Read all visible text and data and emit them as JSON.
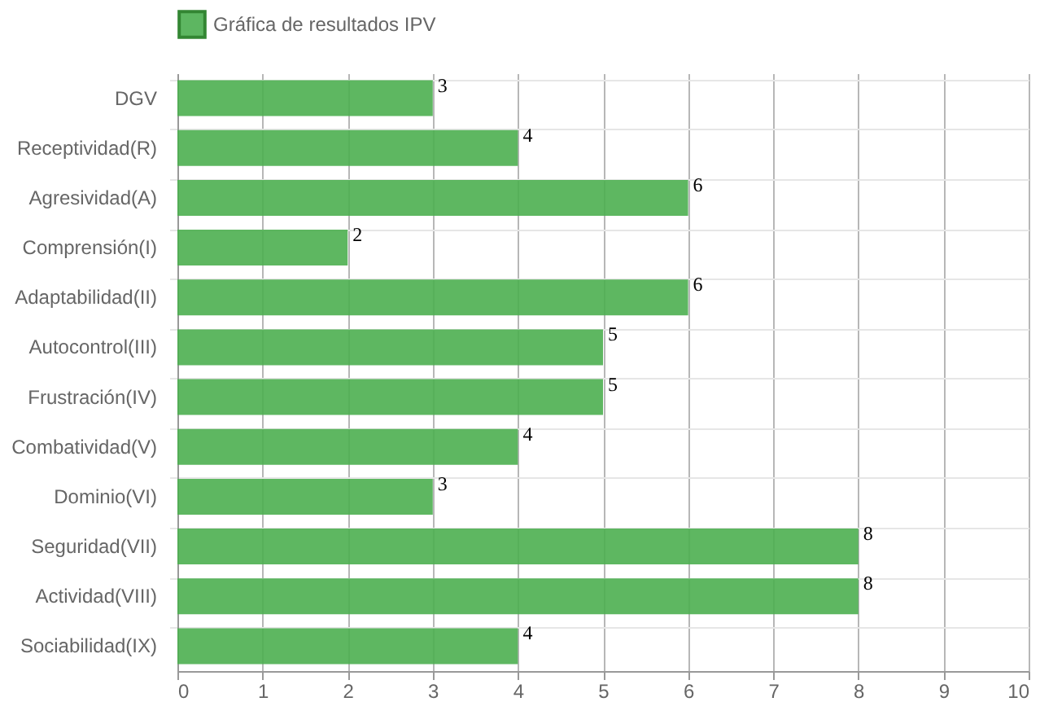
{
  "chart_data": {
    "type": "bar",
    "orientation": "horizontal",
    "categories": [
      "DGV",
      "Receptividad(R)",
      "Agresividad(A)",
      "Comprensión(I)",
      "Adaptabilidad(II)",
      "Autocontrol(III)",
      "Frustración(IV)",
      "Combatividad(V)",
      "Dominio(VI)",
      "Seguridad(VII)",
      "Actividad(VIII)",
      "Sociabilidad(IX)"
    ],
    "series": [
      {
        "name": "Gráfica de resultados IPV",
        "color": "#4caf50",
        "values": [
          3,
          4,
          6,
          2,
          6,
          5,
          5,
          4,
          3,
          8,
          8,
          4
        ]
      }
    ],
    "xlim": [
      0,
      10
    ],
    "xticks": [
      0,
      1,
      2,
      3,
      4,
      5,
      6,
      7,
      8,
      9,
      10
    ],
    "grid": true,
    "legend": "top",
    "data_labels": true
  }
}
